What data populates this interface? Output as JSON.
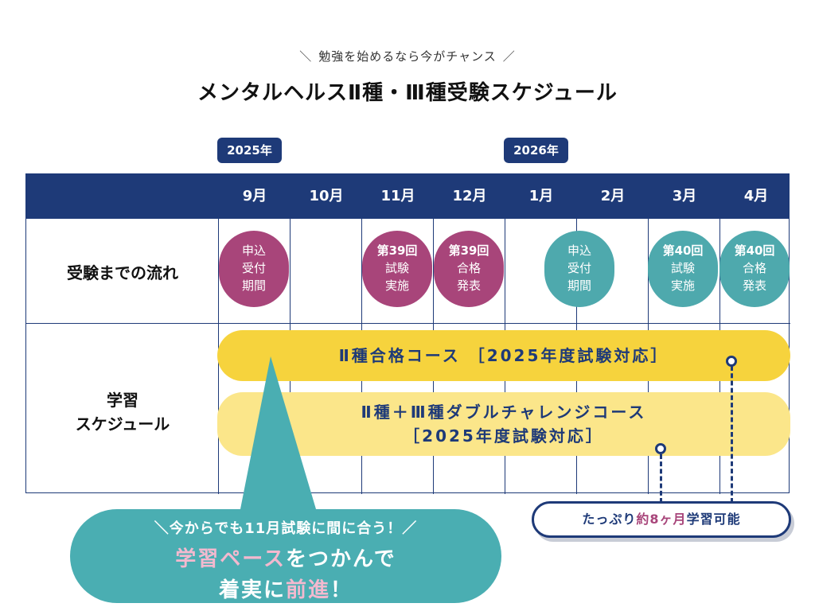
{
  "header": {
    "tagline": "勉強を始めるなら今がチャンス",
    "title": "メンタルヘルスⅡ種・Ⅲ種受験スケジュール"
  },
  "years": [
    "2025年",
    "2026年"
  ],
  "months": [
    "9月",
    "10月",
    "11月",
    "12月",
    "1月",
    "2月",
    "3月",
    "4月"
  ],
  "rows": {
    "flow_label": "受験までの流れ",
    "schedule_label_1": "学習",
    "schedule_label_2": "スケジュール"
  },
  "events": [
    {
      "lines": [
        "申込",
        "受付",
        "期間"
      ],
      "first_bold": false
    },
    {
      "lines": [
        "第39回",
        "試験",
        "実施"
      ],
      "first_bold": true
    },
    {
      "lines": [
        "第39回",
        "合格",
        "発表"
      ],
      "first_bold": true
    },
    {
      "lines": [
        "申込",
        "受付",
        "期間"
      ],
      "first_bold": false
    },
    {
      "lines": [
        "第40回",
        "試験",
        "実施"
      ],
      "first_bold": true
    },
    {
      "lines": [
        "第40回",
        "合格",
        "発表"
      ],
      "first_bold": true
    }
  ],
  "courses": {
    "course1": "Ⅱ種合格コース ［2025年度試験対応］",
    "course2_line1": "Ⅱ種＋Ⅲ種ダブルチャレンジコース",
    "course2_line2": "［2025年度試験対応］"
  },
  "note": {
    "pre": "たっぷり",
    "highlight": "約8ヶ月",
    "post": "学習可能"
  },
  "bubble": {
    "line1": "＼今からでも11月試験に間に合う！／",
    "line2_emph": "学習ペース",
    "line2_rest": "をつかんで",
    "line3_pre": "着実に",
    "line3_emph": "前進",
    "line3_post": "！"
  },
  "colors": {
    "navy": "#1e3a78",
    "pink": "#a8457a",
    "teal": "#4ea9ad",
    "yellow": "#f6d33d",
    "light_yellow": "#fbe68a"
  }
}
